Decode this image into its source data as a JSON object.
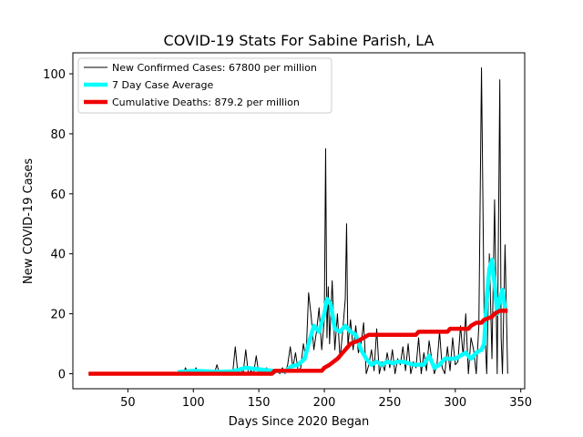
{
  "chart_data": {
    "type": "line",
    "title": "COVID-19 Stats For Sabine Parish, LA",
    "xlabel": "Days Since 2020 Began",
    "ylabel": "New COVID-19 Cases",
    "xlim": [
      8,
      353
    ],
    "ylim": [
      -5,
      107
    ],
    "xticks": [
      50,
      100,
      150,
      200,
      250,
      300,
      350
    ],
    "yticks": [
      0,
      20,
      40,
      60,
      80,
      100
    ],
    "grid": false,
    "legend_position": "top-left",
    "series": [
      {
        "name": "New Confirmed Cases: 67800 per million",
        "color": "#000000",
        "style": "thin-line",
        "x": [
          20,
          40,
          60,
          80,
          88,
          90,
          92,
          94,
          96,
          98,
          100,
          102,
          104,
          106,
          108,
          110,
          112,
          114,
          116,
          118,
          120,
          122,
          124,
          126,
          128,
          130,
          132,
          134,
          136,
          138,
          140,
          142,
          144,
          146,
          148,
          150,
          152,
          154,
          156,
          158,
          160,
          162,
          164,
          166,
          168,
          170,
          172,
          174,
          176,
          178,
          180,
          182,
          184,
          186,
          188,
          190,
          192,
          194,
          196,
          198,
          200,
          201,
          202,
          203,
          204,
          206,
          208,
          210,
          212,
          214,
          216,
          217,
          218,
          220,
          222,
          224,
          226,
          228,
          230,
          232,
          234,
          236,
          238,
          240,
          242,
          244,
          246,
          248,
          250,
          252,
          254,
          256,
          258,
          260,
          262,
          264,
          266,
          268,
          270,
          272,
          274,
          276,
          278,
          280,
          282,
          284,
          286,
          288,
          290,
          292,
          294,
          296,
          298,
          300,
          302,
          304,
          306,
          308,
          310,
          312,
          314,
          316,
          318,
          320,
          322,
          324,
          326,
          328,
          330,
          332,
          334,
          335,
          336,
          338,
          340
        ],
        "values": [
          0,
          0,
          0,
          0,
          0,
          1,
          0,
          2,
          0,
          1,
          0,
          2,
          0,
          1,
          0,
          0,
          1,
          0,
          0,
          3,
          0,
          1,
          0,
          0,
          1,
          0,
          9,
          0,
          2,
          0,
          8,
          0,
          1,
          0,
          6,
          0,
          1,
          0,
          2,
          0,
          1,
          0,
          1,
          0,
          2,
          0,
          3,
          9,
          2,
          7,
          1,
          2,
          10,
          5,
          27,
          19,
          8,
          14,
          22,
          8,
          18,
          75,
          12,
          29,
          10,
          31,
          8,
          20,
          5,
          14,
          25,
          50,
          9,
          18,
          8,
          16,
          7,
          10,
          17,
          0,
          3,
          8,
          1,
          15,
          0,
          4,
          1,
          7,
          2,
          8,
          0,
          5,
          3,
          9,
          1,
          10,
          0,
          4,
          2,
          12,
          0,
          7,
          1,
          11,
          5,
          0,
          3,
          14,
          2,
          0,
          9,
          1,
          12,
          3,
          4,
          16,
          6,
          20,
          0,
          12,
          8,
          0,
          16,
          102,
          20,
          0,
          40,
          5,
          58,
          0,
          98,
          12,
          0,
          43,
          0
        ]
      },
      {
        "name": "7 Day Case Average",
        "color": "#00ffff",
        "style": "thick-line",
        "x": [
          88,
          100,
          110,
          120,
          130,
          140,
          150,
          160,
          170,
          175,
          180,
          185,
          188,
          192,
          196,
          200,
          202,
          205,
          208,
          212,
          216,
          220,
          224,
          228,
          232,
          236,
          240,
          244,
          248,
          252,
          256,
          260,
          264,
          268,
          272,
          276,
          280,
          284,
          288,
          292,
          296,
          300,
          304,
          308,
          312,
          316,
          320,
          322,
          324,
          326,
          328,
          330,
          332,
          334,
          336,
          338
        ],
        "values": [
          0.5,
          1,
          0.8,
          0.6,
          0.8,
          2,
          1.5,
          1,
          0.8,
          2.5,
          3,
          5,
          10,
          16,
          14,
          20,
          25,
          23,
          15,
          14,
          16,
          14,
          13,
          8,
          5,
          3,
          4,
          3,
          4,
          3.5,
          4,
          4,
          3.5,
          3,
          3,
          3,
          6,
          2,
          3,
          5,
          5,
          5,
          6,
          7,
          5,
          7,
          8,
          10,
          25,
          35,
          38,
          30,
          20,
          25,
          28,
          22
        ]
      },
      {
        "name": "Cumulative Deaths: 879.2 per million",
        "color": "#ee0000",
        "style": "thick-line",
        "x": [
          20,
          40,
          60,
          80,
          100,
          120,
          140,
          160,
          162,
          180,
          192,
          198,
          200,
          204,
          210,
          216,
          220,
          226,
          230,
          234,
          240,
          250,
          260,
          270,
          272,
          280,
          290,
          294,
          296,
          300,
          310,
          312,
          316,
          320,
          322,
          328,
          330,
          334,
          340
        ],
        "values": [
          0,
          0,
          0,
          0,
          0,
          0,
          0,
          0,
          1,
          1,
          1,
          1,
          2,
          3,
          5,
          8,
          10,
          11,
          12,
          13,
          13,
          13,
          13,
          13,
          14,
          14,
          14,
          14,
          15,
          15,
          15,
          16,
          17,
          17,
          18,
          19,
          20,
          21,
          21
        ]
      }
    ]
  }
}
